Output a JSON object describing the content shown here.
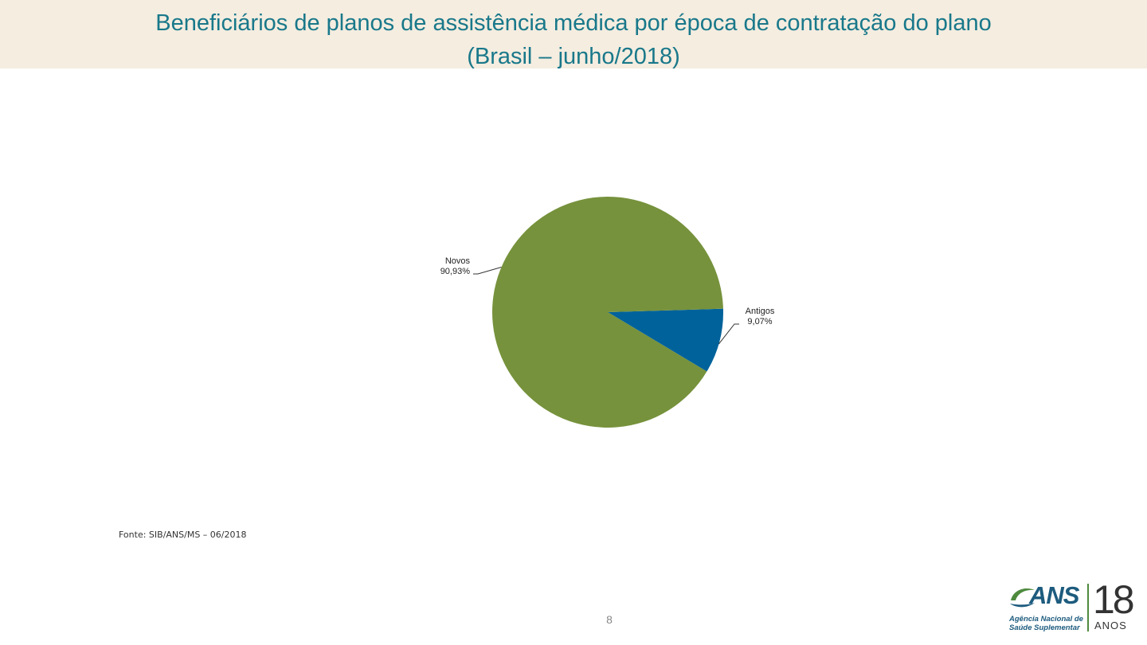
{
  "header": {
    "title_line1": "Beneficiários de planos de assistência médica por época de contratação do plano",
    "title_line2": "(Brasil – junho/2018)"
  },
  "chart_data": {
    "type": "pie",
    "title": "Beneficiários de planos de assistência médica por época de contratação do plano (Brasil – junho/2018)",
    "slices": [
      {
        "name": "Novos",
        "value": 90.93,
        "label": "90,93%",
        "color": "#76923c"
      },
      {
        "name": "Antigos",
        "value": 9.07,
        "label": "9,07%",
        "color": "#00629b"
      }
    ]
  },
  "footer": {
    "source": "Fonte: SIB/ANS/MS – 06/2018",
    "page_number": "8"
  },
  "logo": {
    "wordmark": "ANS",
    "line1": "Agência Nacional de",
    "line2": "Saúde Suplementar",
    "years": "18",
    "years_caption": "ANOS",
    "colors": {
      "blue": "#1d5b7e",
      "green": "#4e8a3e"
    }
  }
}
